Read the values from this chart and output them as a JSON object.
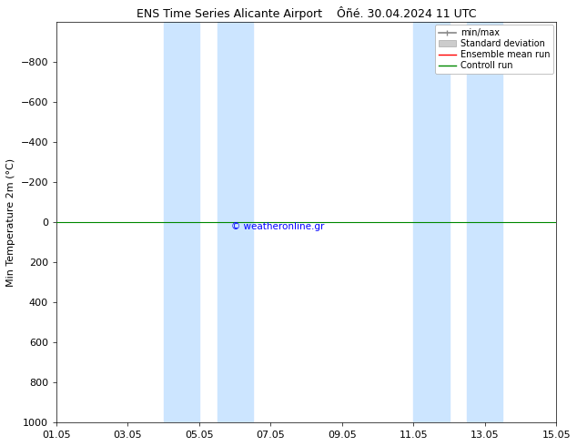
{
  "title": "ENS Time Series Alicante Airport",
  "title2": "Ôñé. 30.04.2024 11 UTC",
  "ylabel": "Min Temperature 2m (°C)",
  "ylim_bottom": -1000,
  "ylim_top": 1000,
  "yticks": [
    -800,
    -600,
    -400,
    -200,
    0,
    200,
    400,
    600,
    800,
    1000
  ],
  "xlim": [
    0,
    14
  ],
  "xtick_positions": [
    0,
    2,
    4,
    6,
    8,
    10,
    12,
    14
  ],
  "xtick_labels": [
    "01.05",
    "03.05",
    "05.05",
    "07.05",
    "09.05",
    "11.05",
    "13.05",
    "15.05"
  ],
  "blue_bands": [
    [
      3.0,
      4.0
    ],
    [
      4.5,
      5.5
    ],
    [
      10.0,
      11.0
    ],
    [
      11.5,
      12.5
    ]
  ],
  "control_run_y": 0,
  "copyright_text": "© weatheronline.gr",
  "bg_color": "#ffffff",
  "band_color": "#cce5ff",
  "control_run_color": "#008800",
  "ensemble_mean_color": "#ff0000",
  "minmax_color": "#888888",
  "std_dev_color": "#cccccc",
  "legend_labels": [
    "min/max",
    "Standard deviation",
    "Ensemble mean run",
    "Controll run"
  ],
  "legend_colors": [
    "#888888",
    "#cccccc",
    "#ff0000",
    "#008800"
  ],
  "title_fontsize": 9,
  "ylabel_fontsize": 8,
  "tick_fontsize": 8,
  "legend_fontsize": 7
}
